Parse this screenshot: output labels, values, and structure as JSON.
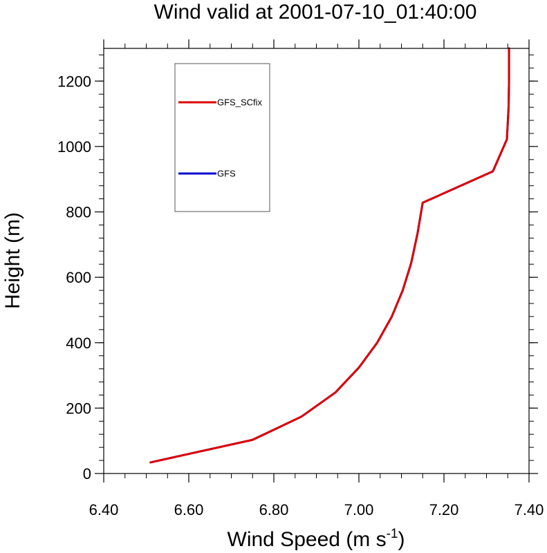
{
  "chart_data": {
    "type": "line",
    "title": "Wind valid at 2001-07-10_01:40:00",
    "xlabel": {
      "base": "Wind Speed (m s",
      "sup": "-1",
      "end": ")"
    },
    "ylabel": "Height (m)",
    "xlim": [
      6.4,
      7.4
    ],
    "ylim": [
      0,
      1300
    ],
    "x_ticks": [
      6.4,
      6.6,
      6.8,
      7.0,
      7.2,
      7.4
    ],
    "x_tick_labels": [
      "6.40",
      "6.60",
      "6.80",
      "7.00",
      "7.20",
      "7.40"
    ],
    "y_ticks": [
      0,
      200,
      400,
      600,
      800,
      1000,
      1200
    ],
    "y_tick_labels": [
      "0",
      "200",
      "400",
      "600",
      "800",
      "1000",
      "1200"
    ],
    "x_minor_step": 0.05,
    "y_minor_step": 40,
    "grid": false,
    "legend_position": "top-left",
    "series": [
      {
        "name": "GFS",
        "color": "#0000cc",
        "points": [
          [
            6.51,
            34
          ],
          [
            6.75,
            103
          ],
          [
            6.865,
            174
          ],
          [
            6.945,
            248
          ],
          [
            7.0,
            324
          ],
          [
            7.043,
            400
          ],
          [
            7.077,
            479
          ],
          [
            7.103,
            560
          ],
          [
            7.123,
            644
          ],
          [
            7.138,
            735
          ],
          [
            7.15,
            828
          ],
          [
            7.315,
            924
          ],
          [
            7.348,
            1022
          ],
          [
            7.352,
            1120
          ],
          [
            7.353,
            1200
          ],
          [
            7.353,
            1300
          ]
        ]
      },
      {
        "name": "GFS_SCfix",
        "color": "#dd0000",
        "points": [
          [
            6.51,
            34
          ],
          [
            6.75,
            103
          ],
          [
            6.865,
            174
          ],
          [
            6.945,
            248
          ],
          [
            7.0,
            324
          ],
          [
            7.043,
            400
          ],
          [
            7.077,
            479
          ],
          [
            7.103,
            560
          ],
          [
            7.123,
            644
          ],
          [
            7.138,
            735
          ],
          [
            7.15,
            828
          ],
          [
            7.315,
            924
          ],
          [
            7.348,
            1022
          ],
          [
            7.352,
            1120
          ],
          [
            7.353,
            1200
          ],
          [
            7.353,
            1300
          ]
        ]
      }
    ],
    "legend": [
      {
        "name": "GFS_SCfix",
        "color": "#dd0000"
      },
      {
        "name": "GFS",
        "color": "#0000cc"
      }
    ]
  }
}
